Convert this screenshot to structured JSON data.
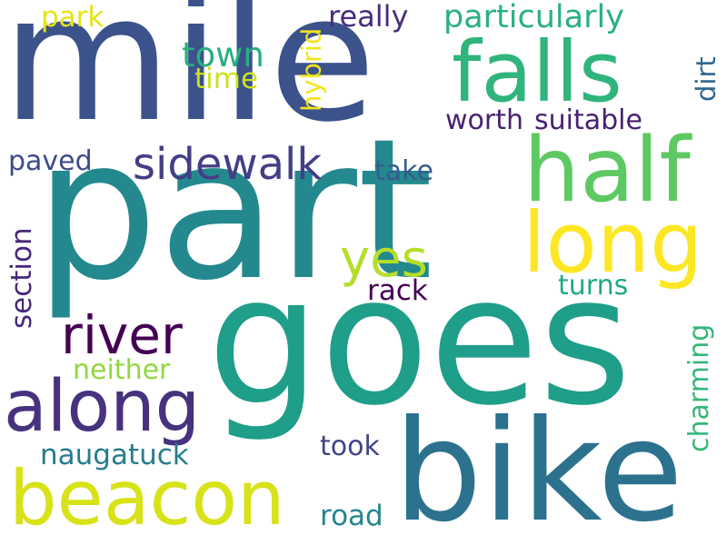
{
  "words": [
    {
      "text": "part",
      "color": "#23898e"
    },
    {
      "text": "goes",
      "color": "#1f9e89"
    },
    {
      "text": "mile",
      "color": "#3b528b"
    },
    {
      "text": "bike",
      "color": "#2c728e"
    },
    {
      "text": "falls",
      "color": "#2fb47c"
    },
    {
      "text": "half",
      "color": "#5ec962"
    },
    {
      "text": "long",
      "color": "#fde725"
    },
    {
      "text": "beacon",
      "color": "#d8e219"
    },
    {
      "text": "along",
      "color": "#46327e"
    },
    {
      "text": "river",
      "color": "#440154"
    },
    {
      "text": "sidewalk",
      "color": "#433e85"
    },
    {
      "text": "yes",
      "color": "#b5de2b"
    },
    {
      "text": "particularly",
      "color": "#2ab07f"
    },
    {
      "text": "town",
      "color": "#29af7f"
    },
    {
      "text": "time",
      "color": "#cde11d"
    },
    {
      "text": "park",
      "color": "#e5e419"
    },
    {
      "text": "really",
      "color": "#472d7b"
    },
    {
      "text": "hybrid",
      "color": "#f1e51d"
    },
    {
      "text": "worth",
      "color": "#482173"
    },
    {
      "text": "suitable",
      "color": "#481f70"
    },
    {
      "text": "dirt",
      "color": "#31668e"
    },
    {
      "text": "paved",
      "color": "#3e4a89"
    },
    {
      "text": "take",
      "color": "#365c8d"
    },
    {
      "text": "section",
      "color": "#482878"
    },
    {
      "text": "rack",
      "color": "#440154"
    },
    {
      "text": "turns",
      "color": "#22a884"
    },
    {
      "text": "charming",
      "color": "#35b779"
    },
    {
      "text": "neither",
      "color": "#93d741"
    },
    {
      "text": "naugatuck",
      "color": "#287c8e"
    },
    {
      "text": "took",
      "color": "#414487"
    },
    {
      "text": "road",
      "color": "#25858e"
    }
  ]
}
